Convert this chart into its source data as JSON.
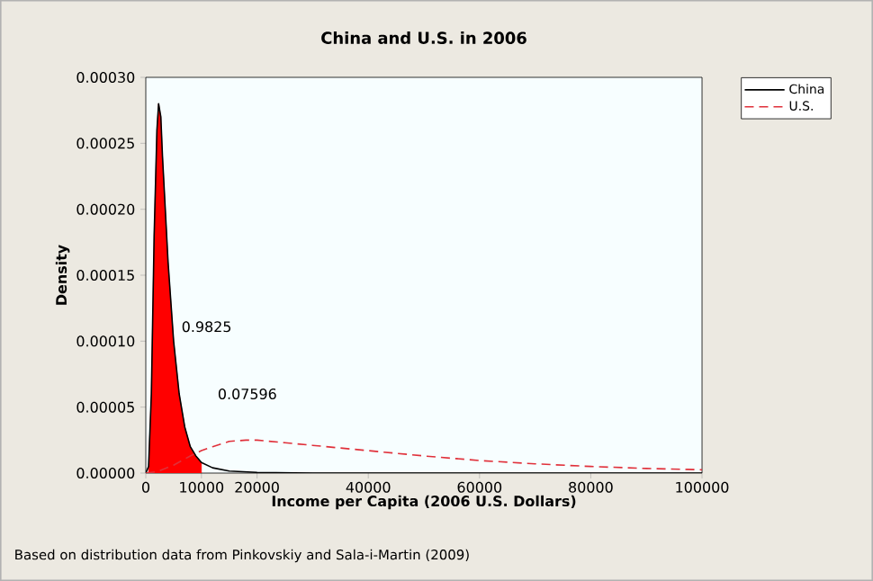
{
  "chart_data": {
    "type": "line",
    "title": "China and U.S. in 2006",
    "xlabel": "Income per Capita (2006 U.S. Dollars)",
    "ylabel": "Density",
    "xlim": [
      0,
      100000
    ],
    "xticks": [
      0,
      10000,
      20000,
      40000,
      60000,
      80000,
      100000
    ],
    "ylim": [
      0,
      0.0003
    ],
    "yticks": [
      {
        "value": 0,
        "label": "0.00000"
      },
      {
        "value": 5e-05,
        "label": "0.00005"
      },
      {
        "value": 0.0001,
        "label": "0.00010"
      },
      {
        "value": 0.00015,
        "label": "0.00015"
      },
      {
        "value": 0.0002,
        "label": "0.00020"
      },
      {
        "value": 0.00025,
        "label": "0.00025"
      },
      {
        "value": 0.0003,
        "label": "0.00030"
      }
    ],
    "legend": "top right",
    "series": [
      {
        "type": "area",
        "color": "#ff0000",
        "x": [
          500,
          1000,
          1500,
          2000,
          2300,
          2700,
          3000,
          3500,
          4000,
          5000,
          6000,
          7000,
          8000,
          9000,
          10000
        ],
        "values": [
          5e-06,
          6e-05,
          0.00018,
          0.00026,
          0.00028,
          0.00027,
          0.00024,
          0.0002,
          0.00016,
          0.0001,
          6e-05,
          3.5e-05,
          2e-05,
          1.3e-05,
          8e-06
        ]
      },
      {
        "name": "China",
        "color": "#000000",
        "x": [
          0,
          500,
          1000,
          1500,
          2000,
          2300,
          2700,
          3000,
          3500,
          4000,
          5000,
          6000,
          7000,
          8000,
          9000,
          10000,
          12000,
          15000,
          20000,
          30000,
          100000
        ],
        "values": [
          0,
          5e-06,
          6e-05,
          0.00018,
          0.00026,
          0.00028,
          0.00027,
          0.00024,
          0.0002,
          0.00016,
          0.0001,
          6e-05,
          3.5e-05,
          2e-05,
          1.3e-05,
          8e-06,
          4e-06,
          1.5e-06,
          5e-07,
          0,
          0
        ]
      },
      {
        "name": "U.S.",
        "line_style": "dashed",
        "color": "#e0303a",
        "x": [
          0,
          2000,
          5000,
          8000,
          10000,
          12000,
          15000,
          18000,
          20000,
          25000,
          30000,
          40000,
          50000,
          60000,
          70000,
          80000,
          90000,
          100000
        ],
        "values": [
          0,
          1e-06,
          6e-06,
          1.3e-05,
          1.7e-05,
          2e-05,
          2.4e-05,
          2.5e-05,
          2.5e-05,
          2.3e-05,
          2.1e-05,
          1.7e-05,
          1.3e-05,
          9.5e-06,
          7e-06,
          5e-06,
          3.5e-06,
          2.5e-06
        ]
      }
    ],
    "annotations": [
      "0.9825",
      "0.07596",
      "Based on distribution data from Pinkovskiy and Sala-i-Martin (2009)"
    ]
  }
}
